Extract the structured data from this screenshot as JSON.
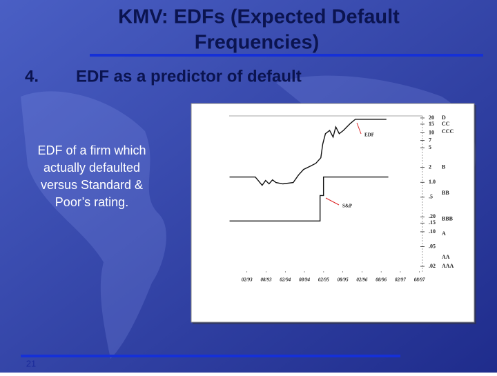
{
  "slide": {
    "title_lines": [
      "KMV: EDFs (Expected Default",
      "Frequencies)"
    ],
    "item_number": "4.",
    "item_text": "EDF as a predictor of default",
    "body_lines": [
      "EDF of a firm which",
      "actually defaulted",
      "versus Standard &",
      "Poor’s rating."
    ],
    "page_number": "21"
  },
  "chart_data": {
    "type": "line",
    "log_y": true,
    "xlim": [
      1992.62,
      1997.66
    ],
    "xticks": [
      {
        "value": 1993.083,
        "label": "02/93"
      },
      {
        "value": 1993.583,
        "label": "08/93"
      },
      {
        "value": 1994.083,
        "label": "02/94"
      },
      {
        "value": 1994.583,
        "label": "08/94"
      },
      {
        "value": 1995.083,
        "label": "02/95"
      },
      {
        "value": 1995.583,
        "label": "08/95"
      },
      {
        "value": 1996.083,
        "label": "02/96"
      },
      {
        "value": 1996.583,
        "label": "08/96"
      },
      {
        "value": 1997.083,
        "label": "02/97"
      },
      {
        "value": 1997.583,
        "label": "08/97"
      }
    ],
    "ylim": [
      0.015,
      22
    ],
    "yticks": [
      20,
      15,
      10,
      7,
      5,
      2,
      {
        "value": 1,
        "label": "1.0"
      },
      {
        "value": 0.5,
        "label": ".5"
      },
      {
        "value": 0.2,
        "label": ".20"
      },
      {
        "value": 0.15,
        "label": ".15"
      },
      {
        "value": 0.1,
        "label": ".10"
      },
      {
        "value": 0.05,
        "label": ".05"
      },
      {
        "value": 0.02,
        "label": ".02"
      }
    ],
    "rating_ticks": [
      {
        "value": 20,
        "label": "D"
      },
      {
        "value": 15,
        "label": "CC"
      },
      {
        "value": 10.5,
        "label": "CCC"
      },
      {
        "value": 2,
        "label": "B"
      },
      {
        "value": 0.6,
        "label": "BB"
      },
      {
        "value": 0.18,
        "label": "BBB"
      },
      {
        "value": 0.09,
        "label": "A"
      },
      {
        "value": 0.03,
        "label": "AA"
      },
      {
        "value": 0.02,
        "label": "AAA"
      }
    ],
    "series": [
      {
        "name": "EDF",
        "color": "#111111",
        "x": [
          1992.63,
          1993.3,
          1993.39,
          1993.48,
          1993.57,
          1993.66,
          1993.75,
          1993.84,
          1994.02,
          1994.29,
          1994.43,
          1994.56,
          1994.74,
          1994.88,
          1995.01,
          1995.06,
          1995.13,
          1995.24,
          1995.33,
          1995.4,
          1995.49,
          1995.6,
          1995.69,
          1995.78,
          1995.91,
          1996.72
        ],
        "values": [
          1.28,
          1.28,
          1.06,
          0.87,
          1.09,
          0.93,
          1.12,
          0.99,
          0.93,
          0.99,
          1.41,
          1.82,
          2.13,
          2.42,
          3.13,
          5.93,
          9.6,
          11.2,
          8.2,
          13.2,
          9.6,
          11.2,
          13.2,
          15.5,
          18.8,
          18.8
        ]
      },
      {
        "name": "S&P",
        "color": "#111111",
        "x": [
          1992.63,
          1994.99,
          1994.99,
          1995.08,
          1995.08,
          1996.77
        ],
        "values": [
          0.165,
          0.165,
          0.54,
          0.54,
          1.28,
          1.28
        ]
      }
    ]
  }
}
